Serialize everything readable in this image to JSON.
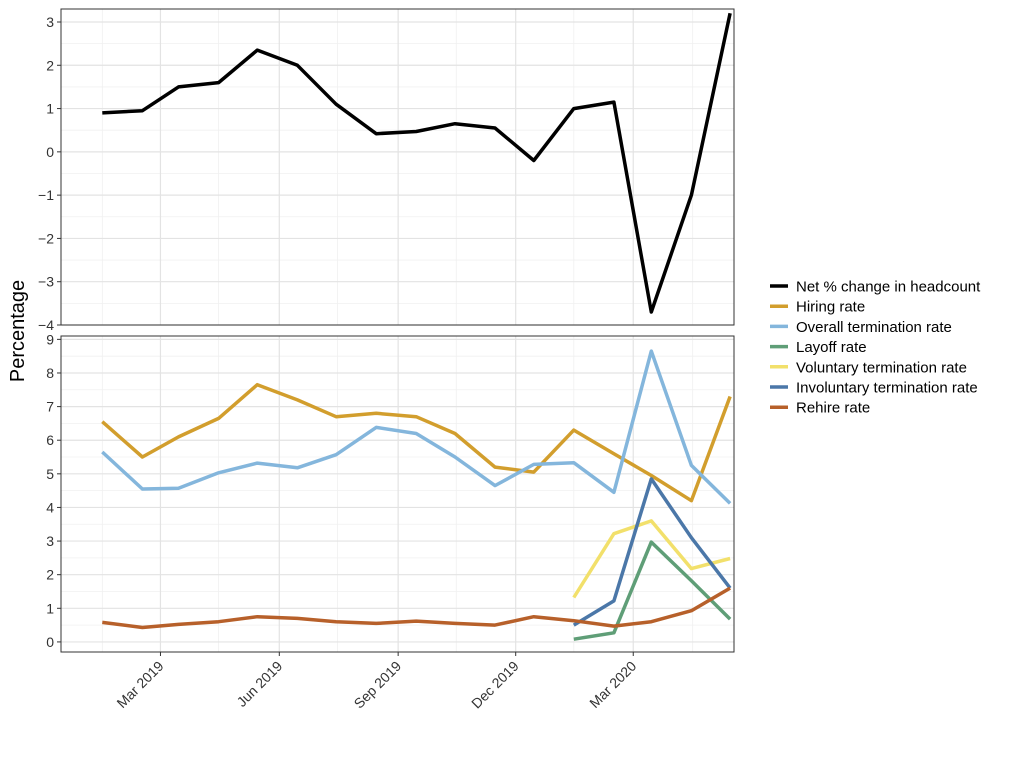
{
  "chart_data": {
    "type": "line",
    "ylabel": "Percentage",
    "x_ticks": [
      "Mar 2019",
      "Jun 2019",
      "Sep 2019",
      "Dec 2019",
      "Mar 2020"
    ],
    "panels": [
      {
        "id": "top",
        "ylim": [
          -4,
          3.3
        ],
        "y_ticks": [
          {
            "value": 3,
            "label": "3"
          },
          {
            "value": 2,
            "label": "2"
          },
          {
            "value": 1,
            "label": "1"
          },
          {
            "value": 0,
            "label": "0"
          },
          {
            "value": -1,
            "label": "−1"
          },
          {
            "value": -2,
            "label": "−2"
          },
          {
            "value": -3,
            "label": "−3"
          },
          {
            "value": -4,
            "label": "−4"
          }
        ],
        "series": [
          {
            "name": "Net % change in headcount",
            "color": "#000000",
            "x": [
              "2019-01",
              "2019-02",
              "2019-03",
              "2019-04",
              "2019-05",
              "2019-06",
              "2019-07",
              "2019-08",
              "2019-09",
              "2019-10",
              "2019-11",
              "2019-12",
              "2020-01",
              "2020-02",
              "2020-03",
              "2020-04",
              "2020-05"
            ],
            "values": [
              0.9,
              0.95,
              1.5,
              1.6,
              2.35,
              2.0,
              1.1,
              0.42,
              0.47,
              0.65,
              0.55,
              -0.2,
              1.0,
              1.15,
              -3.7,
              -1.0,
              3.2
            ]
          }
        ]
      },
      {
        "id": "bottom",
        "ylim": [
          -0.3,
          9.1
        ],
        "y_ticks": [
          {
            "value": 0,
            "label": "0"
          },
          {
            "value": 1,
            "label": "1"
          },
          {
            "value": 2,
            "label": "2"
          },
          {
            "value": 3,
            "label": "3"
          },
          {
            "value": 4,
            "label": "4"
          },
          {
            "value": 5,
            "label": "5"
          },
          {
            "value": 6,
            "label": "6"
          },
          {
            "value": 7,
            "label": "7"
          },
          {
            "value": 8,
            "label": "8"
          },
          {
            "value": 9,
            "label": "9"
          }
        ],
        "series": [
          {
            "name": "Hiring rate",
            "color": "#d29e2d",
            "x": [
              "2019-01",
              "2019-02",
              "2019-03",
              "2019-04",
              "2019-05",
              "2019-06",
              "2019-07",
              "2019-08",
              "2019-09",
              "2019-10",
              "2019-11",
              "2019-12",
              "2020-01",
              "2020-02",
              "2020-03",
              "2020-04",
              "2020-05"
            ],
            "values": [
              6.55,
              5.5,
              6.1,
              6.65,
              7.65,
              7.2,
              6.7,
              6.8,
              6.7,
              6.2,
              5.2,
              5.05,
              6.3,
              5.6,
              4.95,
              4.2,
              7.3
            ]
          },
          {
            "name": "Overall termination rate",
            "color": "#84b6dc",
            "x": [
              "2019-01",
              "2019-02",
              "2019-03",
              "2019-04",
              "2019-05",
              "2019-06",
              "2019-07",
              "2019-08",
              "2019-09",
              "2019-10",
              "2019-11",
              "2019-12",
              "2020-01",
              "2020-02",
              "2020-03",
              "2020-04",
              "2020-05"
            ],
            "values": [
              5.65,
              4.55,
              4.57,
              5.03,
              5.32,
              5.18,
              5.57,
              6.38,
              6.2,
              5.5,
              4.65,
              5.28,
              5.33,
              4.45,
              8.65,
              5.25,
              4.12
            ]
          },
          {
            "name": "Layoff rate",
            "color": "#5f9e77",
            "x": [
              "2020-01",
              "2020-02",
              "2020-03",
              "2020-04",
              "2020-05"
            ],
            "values": [
              0.08,
              0.27,
              2.97,
              1.82,
              0.68
            ]
          },
          {
            "name": "Voluntary termination rate",
            "color": "#f2e06b",
            "x": [
              "2020-01",
              "2020-02",
              "2020-03",
              "2020-04",
              "2020-05"
            ],
            "values": [
              1.32,
              3.22,
              3.6,
              2.18,
              2.48
            ]
          },
          {
            "name": "Involuntary termination rate",
            "color": "#4b77a8",
            "x": [
              "2020-01",
              "2020-02",
              "2020-03",
              "2020-04",
              "2020-05"
            ],
            "values": [
              0.5,
              1.22,
              4.85,
              3.1,
              1.6
            ]
          },
          {
            "name": "Rehire rate",
            "color": "#b7602a",
            "x": [
              "2019-01",
              "2019-02",
              "2019-03",
              "2019-04",
              "2019-05",
              "2019-06",
              "2019-07",
              "2019-08",
              "2019-09",
              "2019-10",
              "2019-11",
              "2019-12",
              "2020-01",
              "2020-02",
              "2020-03",
              "2020-04",
              "2020-05"
            ],
            "values": [
              0.58,
              0.43,
              0.52,
              0.6,
              0.75,
              0.7,
              0.6,
              0.55,
              0.62,
              0.55,
              0.5,
              0.75,
              0.63,
              0.47,
              0.6,
              0.93,
              1.6
            ]
          }
        ]
      }
    ],
    "legend": {
      "placement": "right",
      "entries": [
        {
          "label": "Net % change in headcount",
          "color": "#000000"
        },
        {
          "label": "Hiring rate",
          "color": "#d29e2d"
        },
        {
          "label": "Overall termination rate",
          "color": "#84b6dc"
        },
        {
          "label": "Layoff rate",
          "color": "#5f9e77"
        },
        {
          "label": "Voluntary termination rate",
          "color": "#f2e06b"
        },
        {
          "label": "Involuntary termination rate",
          "color": "#4b77a8"
        },
        {
          "label": "Rehire rate",
          "color": "#b7602a"
        }
      ]
    },
    "grid": true
  }
}
